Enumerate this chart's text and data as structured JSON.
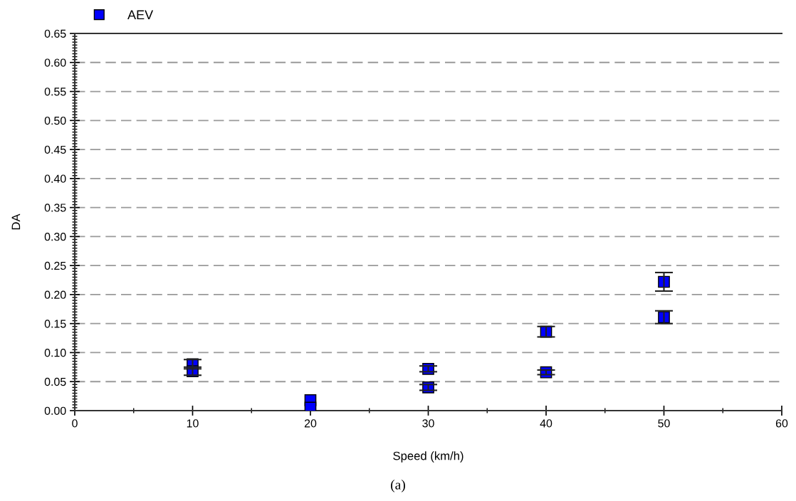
{
  "chart_data": {
    "type": "scatter",
    "xlabel": "Speed (km/h)",
    "ylabel": "DA",
    "x": [
      10,
      10,
      20,
      20,
      30,
      30,
      40,
      40,
      50,
      50
    ],
    "series": [
      {
        "name": "AEV",
        "color": "#0000ff",
        "values": [
          0.08,
          0.068,
          0.018,
          0.005,
          0.072,
          0.04,
          0.136,
          0.066,
          0.222,
          0.161
        ],
        "errors": [
          0.008,
          0.007,
          null,
          null,
          0.005,
          0.005,
          0.009,
          0.004,
          0.016,
          0.011
        ]
      }
    ],
    "xlim": [
      0,
      60
    ],
    "xticks": [
      0,
      10,
      20,
      30,
      40,
      50,
      60
    ],
    "ylim": [
      0,
      0.65
    ],
    "yticks": [
      {
        "value": 0,
        "label": "0.00"
      },
      {
        "value": 0.05,
        "label": "0.05"
      },
      {
        "value": 0.1,
        "label": "0.10"
      },
      {
        "value": 0.15,
        "label": "0.15"
      },
      {
        "value": 0.2,
        "label": "0.20"
      },
      {
        "value": 0.25,
        "label": "0.25"
      },
      {
        "value": 0.3,
        "label": "0.30"
      },
      {
        "value": 0.35,
        "label": "0.35"
      },
      {
        "value": 0.4,
        "label": "0.40"
      },
      {
        "value": 0.45,
        "label": "0.45"
      },
      {
        "value": 0.5,
        "label": "0.50"
      },
      {
        "value": 0.55,
        "label": "0.55"
      },
      {
        "value": 0.6,
        "label": "0.60"
      },
      {
        "value": 0.65,
        "label": "0.65"
      }
    ],
    "grid": "y",
    "legend": "top left",
    "marker": "square",
    "annotations": [
      "(a)"
    ]
  }
}
